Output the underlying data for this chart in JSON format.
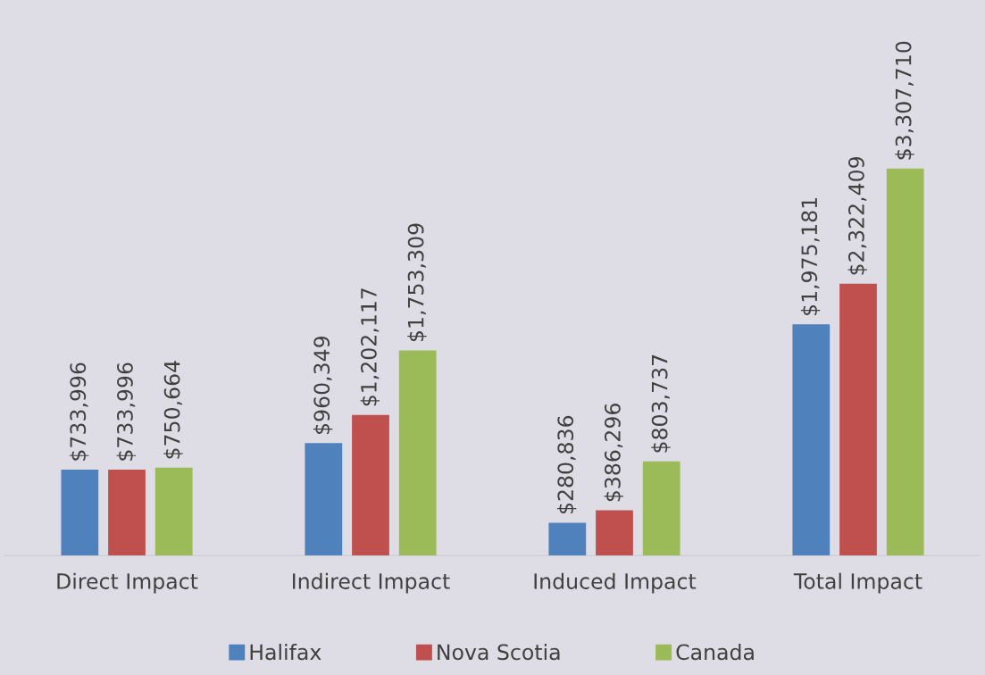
{
  "chart_data": {
    "type": "bar",
    "categories": [
      "Direct Impact",
      "Indirect Impact",
      "Induced Impact",
      "Total Impact"
    ],
    "series": [
      {
        "name": "Halifax",
        "color": "#4f81bd",
        "values": [
          733996,
          960349,
          280836,
          1975181
        ],
        "value_labels": [
          "$733,996",
          "$960,349",
          "$280,836",
          "$1,975,181"
        ]
      },
      {
        "name": "Nova Scotia",
        "color": "#c0504d",
        "values": [
          733996,
          1202117,
          386296,
          2322409
        ],
        "value_labels": [
          "$733,996",
          "$1,202,117",
          "$386,296",
          "$2,322,409"
        ]
      },
      {
        "name": "Canada",
        "color": "#9bbb59",
        "values": [
          750664,
          1753309,
          803737,
          3307710
        ],
        "value_labels": [
          "$750,664",
          "$1,753,309",
          "$803,737",
          "$3,307,710"
        ]
      }
    ],
    "legend": "bottom"
  }
}
